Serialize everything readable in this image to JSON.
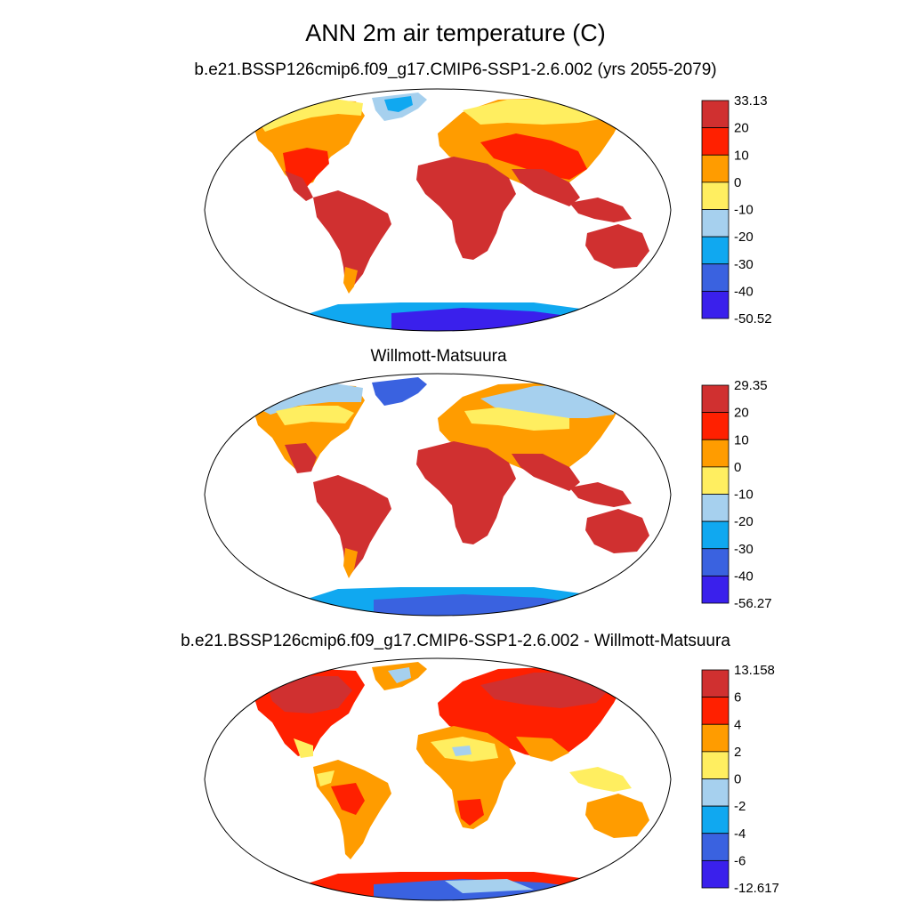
{
  "title": "ANN 2m air temperature (C)",
  "panels": [
    {
      "subtitle": "b.e21.BSSP126cmip6.f09_g17.CMIP6-SSP1-2.6.002 (yrs 2055-2079)",
      "colorbar": {
        "labels": [
          "33.13",
          "20",
          "10",
          "0",
          "-10",
          "-20",
          "-30",
          "-40",
          "-50.52"
        ],
        "colors": [
          "#d03030",
          "#ff2000",
          "#ff9c00",
          "#ffee60",
          "#a6d0ee",
          "#10a8f0",
          "#3a62e0",
          "#3a20ec"
        ]
      }
    },
    {
      "subtitle": "Willmott-Matsuura",
      "colorbar": {
        "labels": [
          "29.35",
          "20",
          "10",
          "0",
          "-10",
          "-20",
          "-30",
          "-40",
          "-56.27"
        ],
        "colors": [
          "#d03030",
          "#ff2000",
          "#ff9c00",
          "#ffee60",
          "#a6d0ee",
          "#10a8f0",
          "#3a62e0",
          "#3a20ec"
        ]
      }
    },
    {
      "subtitle": "b.e21.BSSP126cmip6.f09_g17.CMIP6-SSP1-2.6.002 - Willmott-Matsuura",
      "colorbar": {
        "labels": [
          "13.158",
          "6",
          "4",
          "2",
          "0",
          "-2",
          "-4",
          "-6",
          "-12.617"
        ],
        "colors": [
          "#d03030",
          "#ff2000",
          "#ff9c00",
          "#ffee60",
          "#a6d0ee",
          "#10a8f0",
          "#3a62e0",
          "#3a20ec"
        ]
      }
    }
  ]
}
